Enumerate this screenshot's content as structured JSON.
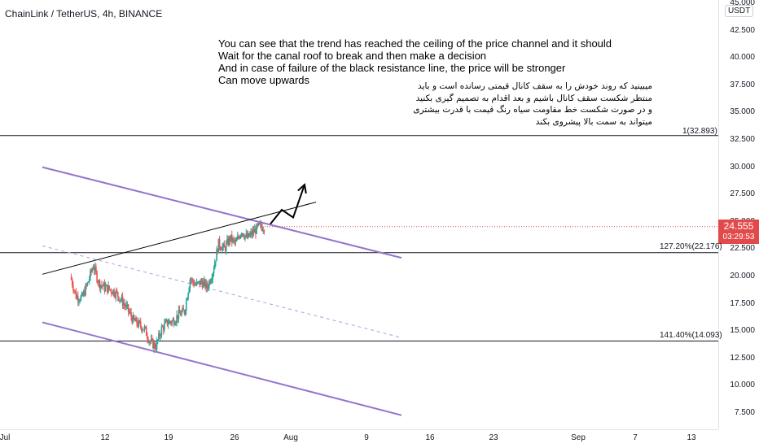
{
  "header": {
    "symbol_title": "ChainLink / TetherUS, 4h, BINANCE"
  },
  "price_scale": {
    "currency": "USDT",
    "ticks": [
      "45.000",
      "42.500",
      "40.000",
      "37.500",
      "35.000",
      "32.500",
      "30.000",
      "27.500",
      "25.000",
      "22.500",
      "20.000",
      "17.500",
      "15.000",
      "12.500",
      "10.000",
      "7.500"
    ]
  },
  "time_scale": {
    "ticks": [
      "Jul",
      "12",
      "19",
      "26",
      "Aug",
      "9",
      "16",
      "23",
      "Sep",
      "7",
      "13"
    ]
  },
  "last_price": {
    "value": "24.555",
    "countdown": "03:29:53",
    "color": "#e24a4a"
  },
  "annotations": {
    "english_note": "You can see that the trend has reached the ceiling of the price channel and it should\nWait for the canal roof to break and then make a decision\nAnd in case of failure of the black resistance line, the price will be stronger\nCan move upwards",
    "persian_note": "میبینید که روند خودش را به سقف کانال قیمتی رسانده است و باید\nمنتظر شکست سقف کانال باشیم و بعد اقدام به تصمیم گیری بکنید\nو در صورت شکست خط مقاومت سیاه رنگ قیمت با قدرت بیشتری\nمیتواند به سمت بالا پیشروی بکند"
  },
  "fib_levels": [
    {
      "label": "1(32.893)",
      "value": 32.893
    },
    {
      "label": "127.20%(22.176)",
      "value": 22.176
    },
    {
      "label": "141.40%(14.093)",
      "value": 14.093
    }
  ],
  "colors": {
    "bull_candle": "#26a69a",
    "bear_candle": "#ef5350",
    "channel_line": "#9575cd",
    "resistance_line": "#000000",
    "midline_dashed": "#b39ddb"
  },
  "chart_data": {
    "type": "candlestick",
    "title": "ChainLink / TetherUS, 4h, BINANCE",
    "ylim": [
      7.5,
      45.0
    ],
    "price_path": [
      [
        "Jul 6",
        20.0
      ],
      [
        "Jul 7",
        18.2
      ],
      [
        "Jul 8",
        18.0
      ],
      [
        "Jul 9",
        19.3
      ],
      [
        "Jul 10",
        21.0
      ],
      [
        "Jul 11",
        19.4
      ],
      [
        "Jul 12",
        19.0
      ],
      [
        "Jul 13",
        18.8
      ],
      [
        "Jul 14",
        18.5
      ],
      [
        "Jul 15",
        17.8
      ],
      [
        "Jul 16",
        17.0
      ],
      [
        "Jul 17",
        16.0
      ],
      [
        "Jul 18",
        15.6
      ],
      [
        "Jul 19",
        15.2
      ],
      [
        "Jul 20",
        14.0
      ],
      [
        "Jul 21",
        13.6
      ],
      [
        "Jul 22",
        15.2
      ],
      [
        "Jul 23",
        15.8
      ],
      [
        "Jul 24",
        15.9
      ],
      [
        "Jul 25",
        16.5
      ],
      [
        "Jul 26",
        16.8
      ],
      [
        "Jul 27",
        19.8
      ],
      [
        "Jul 28",
        19.2
      ],
      [
        "Jul 29",
        19.5
      ],
      [
        "Jul 30",
        19.0
      ],
      [
        "Jul 31",
        20.5
      ],
      [
        "Aug 1",
        23.0
      ],
      [
        "Aug 2",
        22.5
      ],
      [
        "Aug 3",
        23.5
      ],
      [
        "Aug 4",
        23.0
      ],
      [
        "Aug 5",
        24.2
      ],
      [
        "Aug 6",
        23.5
      ],
      [
        "Aug 7",
        24.0
      ],
      [
        "Aug 8",
        24.5
      ],
      [
        "Aug 9",
        24.555
      ]
    ],
    "trendlines": [
      {
        "name": "channel-top",
        "from": [
          "Jul 1",
          30.0
        ],
        "to": [
          "Sep 2",
          21.7
        ]
      },
      {
        "name": "channel-bottom",
        "from": [
          "Jul 1",
          15.8
        ],
        "to": [
          "Sep 2",
          7.3
        ]
      },
      {
        "name": "black-resistance",
        "from": [
          "Jul 1",
          20.2
        ],
        "to": [
          "Aug 18",
          26.8
        ]
      },
      {
        "name": "channel-mid-dashed",
        "from": [
          "Jul 1",
          22.8
        ],
        "to": [
          "Sep 2",
          14.4
        ]
      }
    ],
    "projection_arrow": [
      [
        "Aug 10",
        24.8
      ],
      [
        "Aug 12",
        26.1
      ],
      [
        "Aug 14",
        25.4
      ],
      [
        "Aug 16",
        28.4
      ]
    ]
  }
}
